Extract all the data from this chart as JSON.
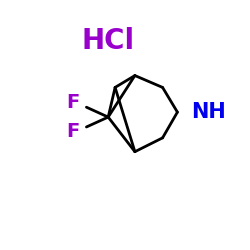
{
  "hcl_text": "HCl",
  "hcl_color": "#9900cc",
  "hcl_fontsize": 20,
  "nh_text": "NH",
  "nh_color": "#0000ee",
  "nh_fontsize": 15,
  "f_text": "F",
  "f_color": "#9900cc",
  "f_fontsize": 14,
  "bond_color": "#000000",
  "bond_lw": 2.0,
  "background": "#ffffff"
}
